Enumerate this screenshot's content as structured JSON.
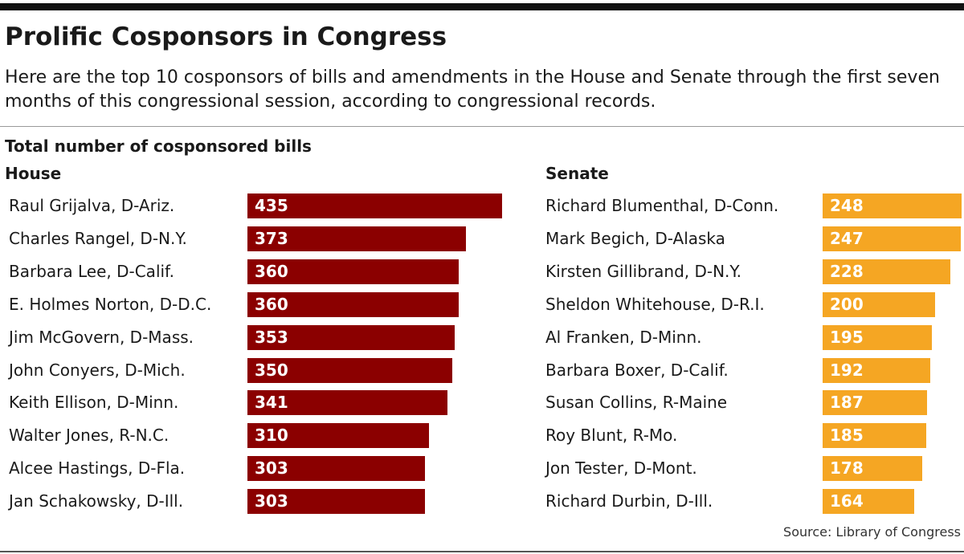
{
  "header": {
    "title": "Prolific Cosponsors in Congress",
    "subtitle": "Here are the top 10 cosponsors of bills and amendments in the House and Senate through the first seven months of this congressional session, according to congressional records."
  },
  "source": "Source: Library of Congress",
  "colors": {
    "house": "#8b0000",
    "senate": "#f5a623"
  },
  "chart_data": [
    {
      "type": "bar",
      "orientation": "horizontal",
      "title": "Total number of cosponsored bills",
      "panel": "House",
      "categories": [
        "Raul Grijalva, D-Ariz.",
        "Charles Rangel, D-N.Y.",
        "Barbara Lee, D-Calif.",
        "E. Holmes Norton, D-D.C.",
        "Jim McGovern, D-Mass.",
        "John Conyers, D-Mich.",
        "Keith Ellison, D-Minn.",
        "Walter Jones, R-N.C.",
        "Alcee Hastings, D-Fla.",
        "Jan Schakowsky, D-Ill."
      ],
      "values": [
        435,
        373,
        360,
        360,
        353,
        350,
        341,
        310,
        303,
        303
      ],
      "color": "#8b0000",
      "grid": false
    },
    {
      "type": "bar",
      "orientation": "horizontal",
      "panel": "Senate",
      "categories": [
        "Richard Blumenthal, D-Conn.",
        "Mark Begich, D-Alaska",
        "Kirsten Gillibrand, D-N.Y.",
        "Sheldon Whitehouse, D-R.I.",
        "Al Franken, D-Minn.",
        "Barbara Boxer, D-Calif.",
        "Susan Collins, R-Maine",
        "Roy Blunt, R-Mo.",
        "Jon Tester, D-Mont.",
        "Richard Durbin, D-Ill."
      ],
      "values": [
        248,
        247,
        228,
        200,
        195,
        192,
        187,
        185,
        178,
        164
      ],
      "color": "#f5a623",
      "grid": false
    }
  ]
}
